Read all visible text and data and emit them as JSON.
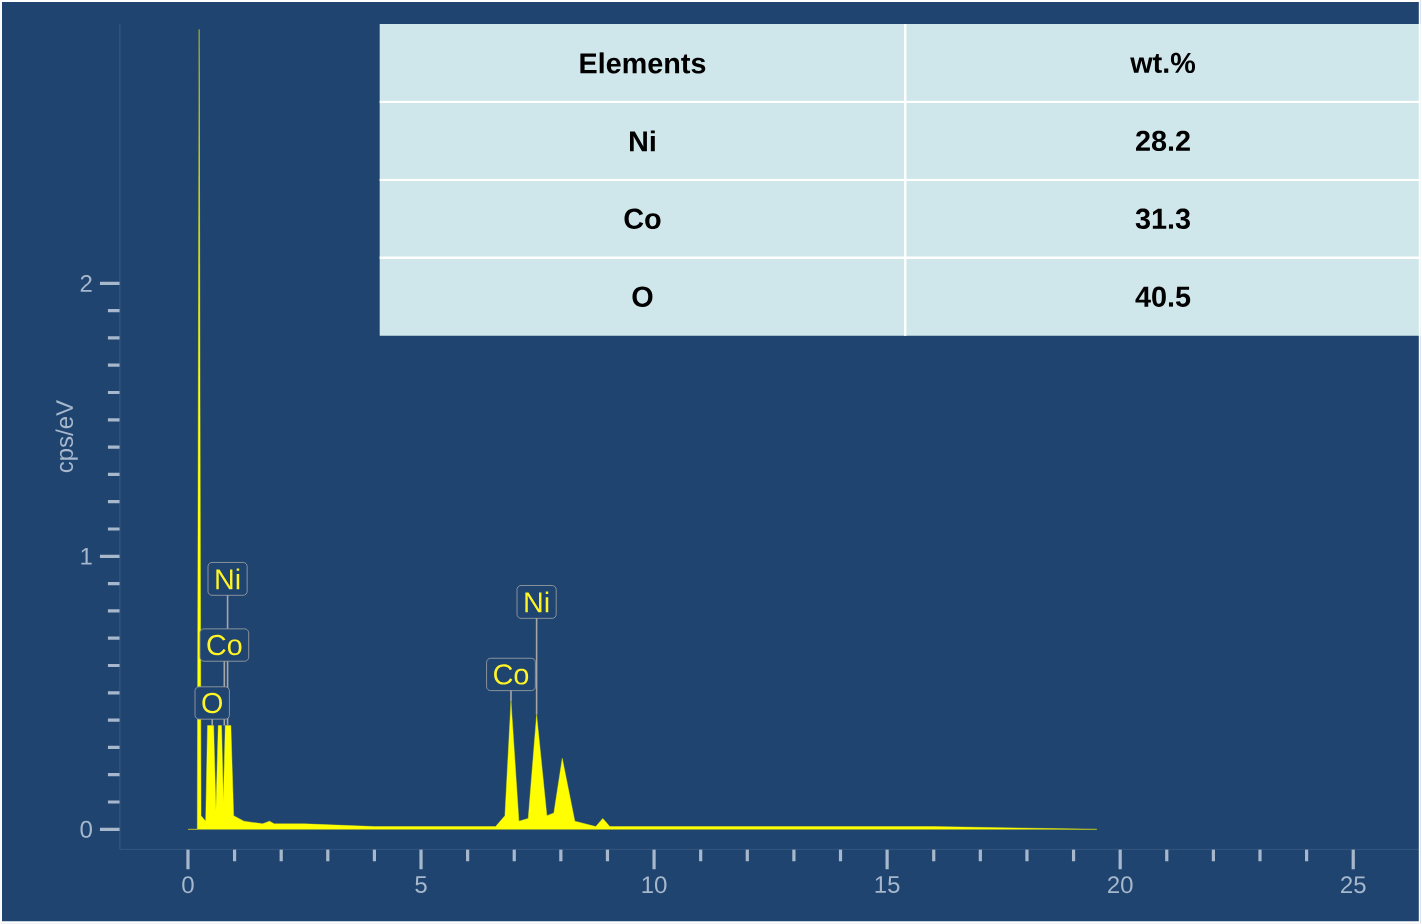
{
  "chart_data": {
    "type": "area",
    "ylabel": "cps/eV",
    "xlim": [
      -1.46,
      26.45
    ],
    "ylim": [
      -0.073,
      2.95
    ],
    "xticks": [
      0,
      5,
      10,
      15,
      20,
      25
    ],
    "yticks": [
      0,
      1,
      2
    ],
    "series": [
      {
        "color": "#ffff00",
        "x": [
          0,
          0.2,
          0.24,
          0.28,
          0.38,
          0.42,
          0.55,
          0.6,
          0.65,
          0.72,
          0.76,
          0.8,
          0.92,
          0.98,
          1.2,
          1.6,
          1.75,
          1.85,
          2.5,
          4,
          6.6,
          6.8,
          6.93,
          7.1,
          7.3,
          7.48,
          7.7,
          7.85,
          8.03,
          8.3,
          8.75,
          8.9,
          9.05,
          12,
          16,
          19.5
        ],
        "values": [
          0,
          0,
          2.93,
          0.05,
          0.03,
          0.38,
          0.38,
          0.07,
          0.38,
          0.38,
          0.1,
          0.38,
          0.38,
          0.05,
          0.03,
          0.02,
          0.03,
          0.02,
          0.02,
          0.01,
          0.01,
          0.05,
          0.47,
          0.03,
          0.04,
          0.42,
          0.05,
          0.06,
          0.26,
          0.03,
          0.01,
          0.04,
          0.01,
          0.01,
          0.01,
          0
        ]
      }
    ],
    "annotations": [
      {
        "text": "O",
        "x": 0.52,
        "y": 0.38
      },
      {
        "text": "Co",
        "x": 0.78,
        "y": 0.38
      },
      {
        "text": "Ni",
        "x": 0.85,
        "y": 0.38
      },
      {
        "text": "Co",
        "x": 6.93,
        "y": 0.47
      },
      {
        "text": "Ni",
        "x": 7.48,
        "y": 0.42
      },
      "Elements",
      "wt.%",
      "Ni",
      "28.2",
      "Co",
      "31.3",
      "O",
      "40.5"
    ]
  }
}
